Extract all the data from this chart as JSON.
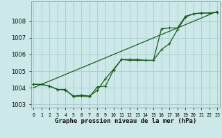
{
  "title": "Graphe pression niveau de la mer (hPa)",
  "bg_color": "#cce8e8",
  "grid_color": "#aad0d0",
  "line_color": "#1a5c1a",
  "x_labels": [
    "0",
    "1",
    "2",
    "3",
    "4",
    "5",
    "6",
    "7",
    "8",
    "9",
    "10",
    "11",
    "12",
    "13",
    "14",
    "15",
    "16",
    "17",
    "18",
    "19",
    "20",
    "21",
    "22",
    "23"
  ],
  "ylim": [
    1002.8,
    1009.2
  ],
  "yticks": [
    1003,
    1004,
    1005,
    1006,
    1007,
    1008
  ],
  "series_straight": [
    1004.0,
    1004.2,
    1004.4,
    1004.6,
    1004.8,
    1005.0,
    1005.2,
    1005.4,
    1005.6,
    1005.8,
    1006.0,
    1006.2,
    1006.4,
    1006.6,
    1006.8,
    1007.0,
    1007.2,
    1007.4,
    1007.6,
    1007.8,
    1008.0,
    1008.2,
    1008.4,
    1008.6
  ],
  "series_curved": [
    1004.2,
    1004.2,
    1004.1,
    1003.9,
    1003.9,
    1003.45,
    1003.5,
    1003.45,
    1004.05,
    1004.1,
    1005.05,
    1005.7,
    1005.7,
    1005.7,
    1005.65,
    1005.65,
    1006.3,
    1006.65,
    1007.5,
    1008.25,
    1008.45,
    1008.5,
    1008.5,
    1008.55
  ],
  "series_mid": [
    1004.2,
    1004.2,
    1004.1,
    1003.9,
    1003.85,
    1003.5,
    1003.55,
    1003.5,
    1003.85,
    1004.55,
    1005.1,
    1005.7,
    1005.65,
    1005.65,
    1005.65,
    1005.65,
    1007.55,
    1007.6,
    1007.6,
    1008.3,
    1008.45,
    1008.5,
    1008.5,
    1008.55
  ]
}
